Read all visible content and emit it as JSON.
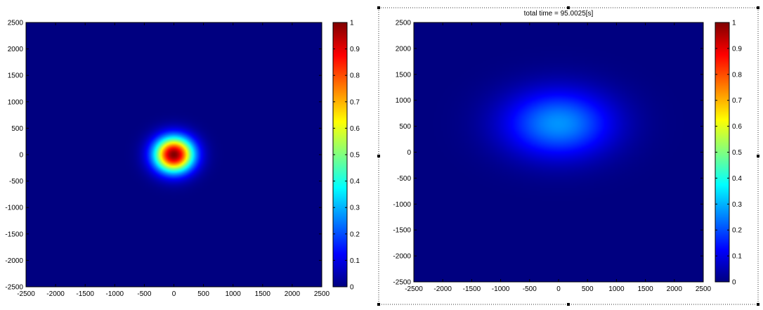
{
  "colormap": "jet",
  "chart_data": [
    {
      "type": "heatmap",
      "title": "",
      "xlabel": "",
      "ylabel": "",
      "xlim": [
        -2500,
        2500
      ],
      "ylim": [
        -2500,
        2500
      ],
      "x_ticks": [
        -2500,
        -2000,
        -1500,
        -1000,
        -500,
        0,
        500,
        1000,
        1500,
        2000,
        2500
      ],
      "y_ticks": [
        -2500,
        -2000,
        -1500,
        -1000,
        -500,
        0,
        500,
        1000,
        1500,
        2000,
        2500
      ],
      "x_tick_labels": [
        "-2500",
        "-2000",
        "-1500",
        "-1000",
        "-500",
        "0",
        "500",
        "1000",
        "1500",
        "2000",
        "2500"
      ],
      "y_tick_labels": [
        "-2500",
        "-2000",
        "-1500",
        "-1000",
        "-500",
        "0",
        "500",
        "1000",
        "1500",
        "2000",
        "2500"
      ],
      "grid": false,
      "colorbar": {
        "position": "right",
        "range": [
          0,
          1
        ],
        "ticks": [
          0,
          0.1,
          0.2,
          0.3,
          0.4,
          0.5,
          0.6,
          0.7,
          0.8,
          0.9,
          1
        ],
        "tick_labels": [
          "0",
          "0.1",
          "0.2",
          "0.3",
          "0.4",
          "0.5",
          "0.6",
          "0.7",
          "0.8",
          "0.9",
          "1"
        ]
      },
      "field": {
        "shape": "gaussian",
        "center": [
          0,
          0
        ],
        "sigma": [
          230,
          230
        ],
        "peak": 1.0,
        "background": 0.0
      },
      "selected": false
    },
    {
      "type": "heatmap",
      "title": "total time = 95.0025[s]",
      "xlabel": "",
      "ylabel": "",
      "xlim": [
        -2500,
        2500
      ],
      "ylim": [
        -2500,
        2500
      ],
      "x_ticks": [
        -2500,
        -2000,
        -1500,
        -1000,
        -500,
        0,
        500,
        1000,
        1500,
        2000,
        2500
      ],
      "y_ticks": [
        -2500,
        -2000,
        -1500,
        -1000,
        -500,
        0,
        500,
        1000,
        1500,
        2000,
        2500
      ],
      "x_tick_labels": [
        "-2500",
        "-2000",
        "-1500",
        "-1000",
        "-500",
        "0",
        "500",
        "1000",
        "1500",
        "2000",
        "2500"
      ],
      "y_tick_labels": [
        "-2500",
        "-2000",
        "-1500",
        "-1000",
        "-500",
        "0",
        "500",
        "1000",
        "1500",
        "2000",
        "2500"
      ],
      "grid": false,
      "colorbar": {
        "position": "right",
        "range": [
          0,
          1
        ],
        "ticks": [
          0,
          0.1,
          0.2,
          0.3,
          0.4,
          0.5,
          0.6,
          0.7,
          0.8,
          0.9,
          1
        ],
        "tick_labels": [
          "0",
          "0.1",
          "0.2",
          "0.3",
          "0.4",
          "0.5",
          "0.6",
          "0.7",
          "0.8",
          "0.9",
          "1"
        ]
      },
      "field": {
        "shape": "gaussian",
        "center": [
          0,
          550
        ],
        "sigma": [
          650,
          450
        ],
        "peak": 0.27,
        "background": 0.0
      },
      "selected": true
    }
  ]
}
